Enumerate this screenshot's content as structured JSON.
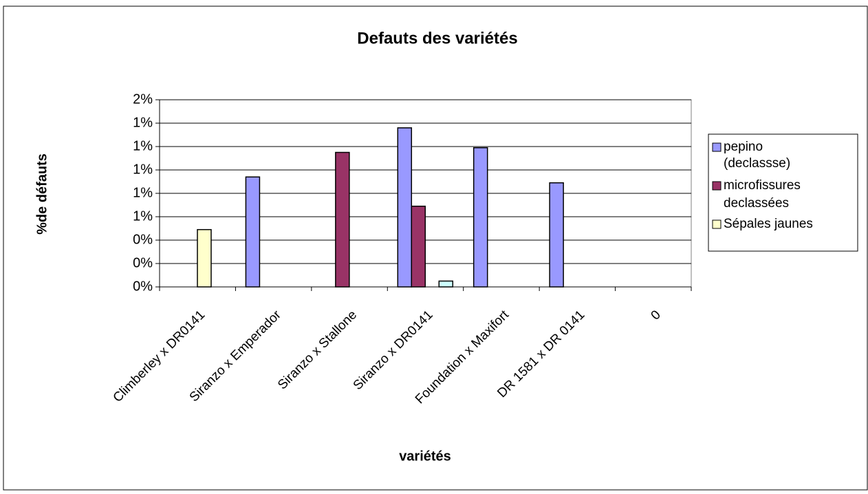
{
  "chart_data": {
    "type": "bar",
    "title": "Defauts des variétés",
    "x_label": "variétés",
    "y_label": "%de défauts",
    "categories": [
      "Climberley x DR0141",
      "Siranzo x Emperador",
      "Siranzo x Stallone",
      "Siranzo x DR0141",
      "Foundation x Maxifort",
      "DR 1581 x DR 0141",
      "0"
    ],
    "series": [
      {
        "name": "pepino (declassse)",
        "color": "#9999ff",
        "values": [
          null,
          0.94,
          null,
          1.36,
          1.19,
          0.89,
          null
        ]
      },
      {
        "name": "microfissures declassées",
        "color": "#993366",
        "values": [
          null,
          null,
          1.15,
          0.69,
          null,
          null,
          null
        ]
      },
      {
        "name": "Sépales jaunes",
        "color": "#ffffcc",
        "values": [
          0.49,
          null,
          null,
          null,
          null,
          null,
          null
        ]
      },
      {
        "name": null,
        "color": "#ccffff",
        "values": [
          null,
          null,
          null,
          0.05,
          null,
          null,
          null
        ]
      }
    ],
    "ylim": [
      0,
      1.6
    ],
    "yticks": [
      {
        "value": 0,
        "label": "0%"
      },
      {
        "value": 0.2,
        "label": "0%"
      },
      {
        "value": 0.4,
        "label": "0%"
      },
      {
        "value": 0.6,
        "label": "1%"
      },
      {
        "value": 0.8,
        "label": "1%"
      },
      {
        "value": 1.0,
        "label": "1%"
      },
      {
        "value": 1.2,
        "label": "1%"
      },
      {
        "value": 1.4,
        "label": "1%"
      },
      {
        "value": 1.6,
        "label": "2%"
      }
    ],
    "grid": true,
    "legend": "right"
  }
}
